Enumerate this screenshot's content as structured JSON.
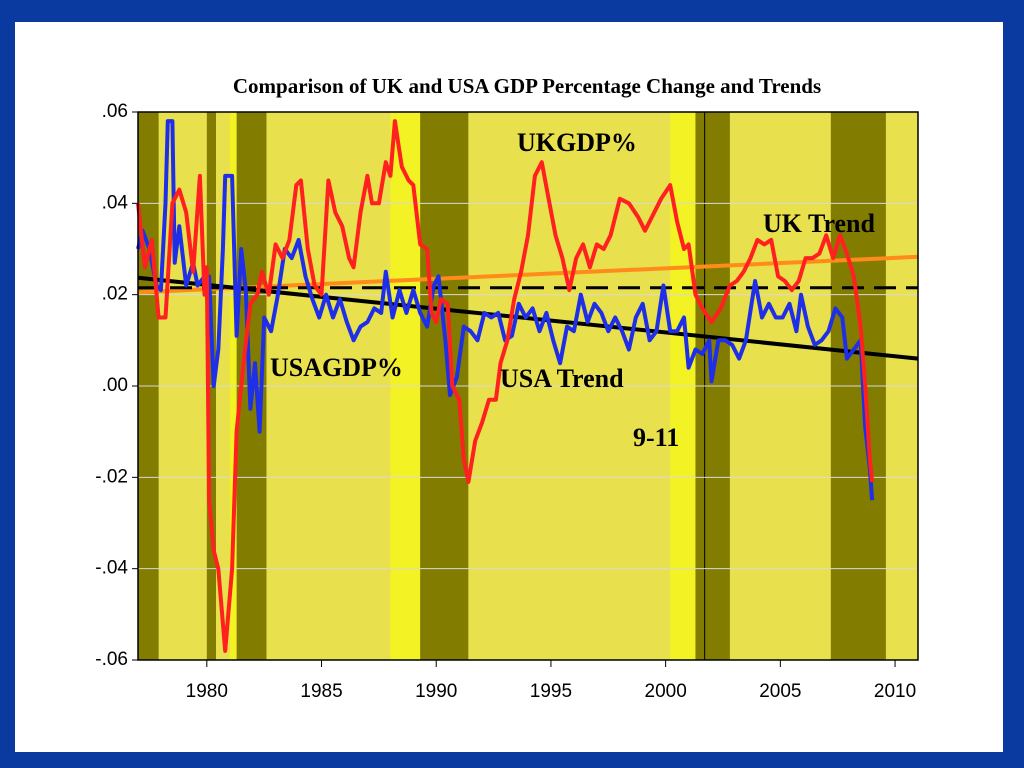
{
  "chart_data": {
    "type": "line",
    "title": "Comparison of UK and USA GDP Percentage Change and Trends",
    "xlim": [
      1977,
      2011
    ],
    "ylim": [
      -0.06,
      0.06
    ],
    "xticks": [
      1980,
      1985,
      1990,
      1995,
      2000,
      2005,
      2010
    ],
    "yticks": [
      {
        "value": 0.06,
        "label": ".06"
      },
      {
        "value": 0.04,
        "label": ".04"
      },
      {
        "value": 0.02,
        "label": ".02"
      },
      {
        "value": 0,
        "label": ".00"
      },
      {
        "value": -0.02,
        "label": "-.02"
      },
      {
        "value": -0.04,
        "label": "-.04"
      },
      {
        "value": -0.06,
        "label": "-.06"
      }
    ],
    "background": "#e8e04c",
    "shading": [
      {
        "x": [
          1977,
          1977.9
        ],
        "color": "#827c00"
      },
      {
        "x": [
          1980.0,
          1980.4
        ],
        "color": "#827c00"
      },
      {
        "x": [
          1981.0,
          1981.3
        ],
        "color": "#f2f224"
      },
      {
        "x": [
          1981.3,
          1982.6
        ],
        "color": "#827c00"
      },
      {
        "x": [
          1988.0,
          1989.3
        ],
        "color": "#f2f224"
      },
      {
        "x": [
          1989.3,
          1991.4
        ],
        "color": "#827c00"
      },
      {
        "x": [
          2000.2,
          2001.3
        ],
        "color": "#f2f224"
      },
      {
        "x": [
          2001.3,
          2002.8
        ],
        "color": "#827c00"
      },
      {
        "x": [
          2007.2,
          2009.6
        ],
        "color": "#827c00"
      }
    ],
    "event_line": 2001.7,
    "annotations": [
      "9-11"
    ],
    "series": [
      {
        "name": "UKGDP%",
        "color": "#ff2020",
        "x": [
          1977.0,
          1977.3,
          1977.6,
          1977.9,
          1978.2,
          1978.5,
          1978.8,
          1979.1,
          1979.4,
          1979.7,
          1979.9,
          1980.0,
          1980.1,
          1980.3,
          1980.5,
          1980.8,
          1981.1,
          1981.3,
          1981.6,
          1981.9,
          1982.2,
          1982.4,
          1982.7,
          1983.0,
          1983.3,
          1983.6,
          1983.9,
          1984.1,
          1984.4,
          1984.7,
          1985.0,
          1985.3,
          1985.6,
          1985.9,
          1986.2,
          1986.4,
          1986.7,
          1987.0,
          1987.2,
          1987.5,
          1987.8,
          1988.0,
          1988.2,
          1988.5,
          1988.8,
          1989.0,
          1989.3,
          1989.6,
          1989.8,
          1990.0,
          1990.2,
          1990.5,
          1990.7,
          1991.0,
          1991.2,
          1991.4,
          1991.7,
          1992.0,
          1992.3,
          1992.6,
          1992.8,
          1993.1,
          1993.4,
          1993.7,
          1994.0,
          1994.3,
          1994.6,
          1994.9,
          1995.2,
          1995.5,
          1995.8,
          1996.1,
          1996.4,
          1996.7,
          1997.0,
          1997.3,
          1997.6,
          1998.0,
          1998.4,
          1998.8,
          1999.1,
          1999.5,
          1999.8,
          2000.2,
          2000.5,
          2000.8,
          2001.0,
          2001.3,
          2001.6,
          2002.0,
          2002.4,
          2002.8,
          2003.1,
          2003.4,
          2003.7,
          2004.0,
          2004.3,
          2004.6,
          2004.9,
          2005.2,
          2005.5,
          2005.8,
          2006.1,
          2006.4,
          2006.7,
          2007.0,
          2007.3,
          2007.6,
          2007.9,
          2008.2,
          2008.5,
          2008.7,
          2008.9,
          2009.0
        ],
        "values": [
          0.04,
          0.026,
          0.032,
          0.015,
          0.015,
          0.04,
          0.043,
          0.038,
          0.025,
          0.046,
          0.02,
          0.026,
          -0.025,
          -0.036,
          -0.04,
          -0.058,
          -0.04,
          -0.01,
          0.005,
          0.018,
          0.02,
          0.025,
          0.02,
          0.031,
          0.028,
          0.032,
          0.044,
          0.045,
          0.03,
          0.022,
          0.02,
          0.045,
          0.038,
          0.035,
          0.028,
          0.026,
          0.038,
          0.046,
          0.04,
          0.04,
          0.049,
          0.046,
          0.058,
          0.048,
          0.045,
          0.044,
          0.031,
          0.03,
          0.016,
          0.014,
          0.019,
          0.018,
          0.0,
          -0.003,
          -0.016,
          -0.021,
          -0.012,
          -0.008,
          -0.003,
          -0.003,
          0.005,
          0.01,
          0.019,
          0.025,
          0.033,
          0.046,
          0.049,
          0.041,
          0.033,
          0.028,
          0.021,
          0.028,
          0.031,
          0.026,
          0.031,
          0.03,
          0.033,
          0.041,
          0.04,
          0.037,
          0.034,
          0.038,
          0.041,
          0.044,
          0.036,
          0.03,
          0.031,
          0.02,
          0.017,
          0.014,
          0.017,
          0.022,
          0.023,
          0.025,
          0.028,
          0.032,
          0.031,
          0.032,
          0.024,
          0.023,
          0.021,
          0.023,
          0.028,
          0.028,
          0.029,
          0.033,
          0.028,
          0.033,
          0.029,
          0.024,
          0.013,
          0.0,
          -0.016,
          -0.021
        ]
      },
      {
        "name": "USAGDP%",
        "color": "#1f2fe8",
        "x": [
          1977.0,
          1977.2,
          1977.5,
          1977.8,
          1978.0,
          1978.2,
          1978.3,
          1978.5,
          1978.6,
          1978.8,
          1979.1,
          1979.4,
          1979.6,
          1979.9,
          1980.1,
          1980.3,
          1980.5,
          1980.7,
          1980.8,
          1981.1,
          1981.3,
          1981.5,
          1981.7,
          1981.9,
          1982.1,
          1982.3,
          1982.5,
          1982.8,
          1983.1,
          1983.4,
          1983.7,
          1984.0,
          1984.3,
          1984.6,
          1984.9,
          1985.2,
          1985.5,
          1985.8,
          1986.1,
          1986.4,
          1986.7,
          1987.0,
          1987.3,
          1987.6,
          1987.8,
          1988.1,
          1988.4,
          1988.7,
          1989.0,
          1989.3,
          1989.6,
          1989.9,
          1990.1,
          1990.4,
          1990.6,
          1990.9,
          1991.2,
          1991.5,
          1991.8,
          1992.1,
          1992.4,
          1992.7,
          1993.0,
          1993.3,
          1993.6,
          1993.9,
          1994.2,
          1994.5,
          1994.8,
          1995.1,
          1995.4,
          1995.7,
          1996.0,
          1996.3,
          1996.6,
          1996.9,
          1997.2,
          1997.5,
          1997.8,
          1998.1,
          1998.4,
          1998.7,
          1999.0,
          1999.3,
          1999.6,
          1999.9,
          2000.2,
          2000.5,
          2000.8,
          2001.0,
          2001.3,
          2001.6,
          2001.9,
          2002.0,
          2002.3,
          2002.6,
          2002.9,
          2003.2,
          2003.5,
          2003.9,
          2004.2,
          2004.5,
          2004.8,
          2005.1,
          2005.4,
          2005.7,
          2005.9,
          2006.2,
          2006.5,
          2006.8,
          2007.1,
          2007.4,
          2007.7,
          2007.9,
          2008.2,
          2008.5,
          2008.7,
          2008.9,
          2009.0
        ],
        "values": [
          0.03,
          0.034,
          0.03,
          0.022,
          0.021,
          0.04,
          0.058,
          0.058,
          0.027,
          0.035,
          0.022,
          0.027,
          0.022,
          0.024,
          0.024,
          0.0,
          0.008,
          0.03,
          0.046,
          0.046,
          0.011,
          0.03,
          0.021,
          -0.005,
          0.005,
          -0.01,
          0.015,
          0.012,
          0.02,
          0.03,
          0.028,
          0.032,
          0.024,
          0.019,
          0.015,
          0.02,
          0.015,
          0.019,
          0.014,
          0.01,
          0.013,
          0.014,
          0.017,
          0.016,
          0.025,
          0.015,
          0.021,
          0.016,
          0.021,
          0.016,
          0.013,
          0.022,
          0.024,
          0.01,
          -0.002,
          0.002,
          0.013,
          0.012,
          0.01,
          0.016,
          0.015,
          0.016,
          0.01,
          0.011,
          0.018,
          0.015,
          0.017,
          0.012,
          0.016,
          0.01,
          0.005,
          0.013,
          0.012,
          0.02,
          0.014,
          0.018,
          0.016,
          0.012,
          0.015,
          0.012,
          0.008,
          0.015,
          0.018,
          0.01,
          0.012,
          0.022,
          0.012,
          0.012,
          0.015,
          0.004,
          0.008,
          0.007,
          0.01,
          0.001,
          0.01,
          0.01,
          0.009,
          0.006,
          0.01,
          0.023,
          0.015,
          0.018,
          0.015,
          0.015,
          0.018,
          0.012,
          0.02,
          0.013,
          0.009,
          0.01,
          0.012,
          0.017,
          0.015,
          0.006,
          0.008,
          0.01,
          -0.009,
          -0.018,
          -0.025
        ]
      },
      {
        "name": "UK Trend",
        "color": "#ff8c1a",
        "x": [
          1977,
          2011
        ],
        "values": [
          0.0205,
          0.0283
        ]
      },
      {
        "name": "USA Trend",
        "color": "#000000",
        "x": [
          1977,
          2011
        ],
        "values": [
          0.0237,
          0.006
        ]
      },
      {
        "color": "#000000",
        "dashed": true,
        "x": [
          1977,
          2011
        ],
        "values": [
          0.0215,
          0.0215
        ]
      }
    ]
  }
}
